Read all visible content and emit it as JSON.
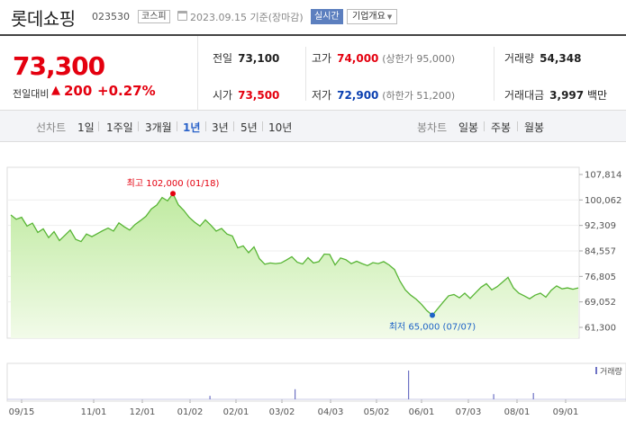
{
  "header": {
    "name": "롯데쇼핑",
    "code": "023530",
    "market": "코스피",
    "date": "2023.09.15 기준(장마감)",
    "realtime": "실시간",
    "company_info": "기업개요"
  },
  "quote": {
    "price": "73,300",
    "change_label": "전일대비",
    "change": "200",
    "change_pct": "+0.27%",
    "prev_label": "전일",
    "prev": "73,100",
    "high_label": "고가",
    "high": "74,000",
    "upper_limit": "(상한가 95,000)",
    "volume_label": "거래량",
    "volume": "54,348",
    "open_label": "시가",
    "open": "73,500",
    "low_label": "저가",
    "low": "72,900",
    "lower_limit": "(하한가 51,200)",
    "value_label": "거래대금",
    "value": "3,997",
    "value_unit": "백만"
  },
  "tabs": {
    "line_label": "선차트",
    "periods": [
      "1일",
      "1주일",
      "3개월",
      "1년",
      "3년",
      "5년",
      "10년"
    ],
    "active_period": "1년",
    "candle_label": "봉차트",
    "candles": [
      "일봉",
      "주봉",
      "월봉"
    ]
  },
  "chart_data": {
    "type": "area",
    "series": [
      {
        "values": [
          95500,
          94200,
          94800,
          92100,
          93000,
          90200,
          91300,
          88600,
          90400,
          87700,
          89300,
          90900,
          88100,
          87400,
          89700,
          88900,
          89800,
          90700,
          91500,
          90600,
          93100,
          91900,
          90900,
          92600,
          93800,
          95100,
          97300,
          98500,
          100800,
          99800,
          102000,
          98600,
          96900,
          94800,
          93300,
          92100,
          94000,
          92400,
          90600,
          91400,
          89700,
          89100,
          85500,
          86100,
          84000,
          85800,
          82200,
          80500,
          80900,
          80700,
          80900,
          81800,
          82800,
          81100,
          80600,
          82500,
          80900,
          81300,
          83600,
          83500,
          80300,
          82400,
          81900,
          80700,
          81400,
          80700,
          80100,
          81000,
          80700,
          81300,
          80300,
          78900,
          75400,
          72700,
          71100,
          69900,
          68300,
          66400,
          65000,
          67000,
          69000,
          70900,
          71300,
          70300,
          71700,
          70100,
          71800,
          73500,
          74600,
          72700,
          73700,
          75100,
          76500,
          73300,
          71700,
          70900,
          70000,
          71100,
          71700,
          70500,
          72600,
          73900,
          73000,
          73300,
          72900,
          73300
        ]
      }
    ],
    "x_tick_labels": [
      "09/15",
      "11/01",
      "12/01",
      "01/02",
      "02/01",
      "03/02",
      "04/03",
      "05/02",
      "06/01",
      "07/03",
      "08/01",
      "09/01"
    ],
    "y_tick_labels": [
      "107,814",
      "100,062",
      "92,309",
      "84,557",
      "76,805",
      "69,052",
      "61,300"
    ],
    "ylim": [
      61300,
      107814
    ],
    "annotations": {
      "high": "최고 102,000 (01/18)",
      "low": "최저 65,000 (07/07)"
    },
    "volume_legend": "거래량",
    "colors": {
      "line": "#58b535",
      "fill_top": "#bfeaa0",
      "fill_bottom": "#f2fbe9",
      "high": "#e4000f",
      "low": "#1f64c7",
      "grid": "#dddddd"
    }
  }
}
